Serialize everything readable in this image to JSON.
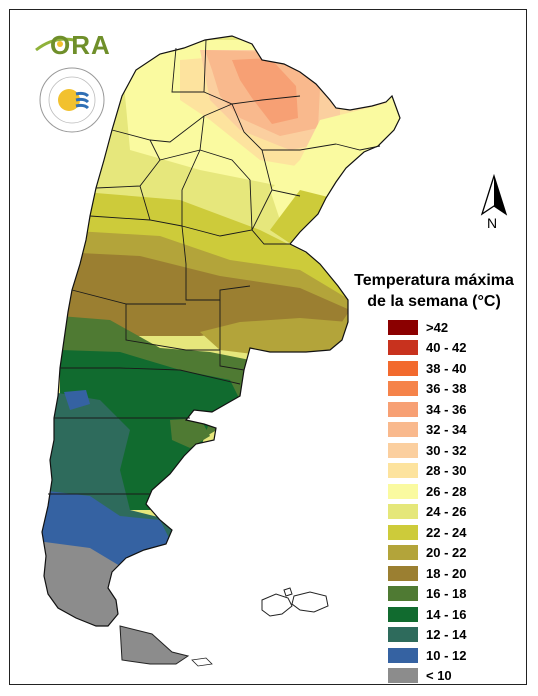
{
  "legend": {
    "title_line1": "Temperatura máxima",
    "title_line2": "de la semana (°C)",
    "items": [
      {
        "label": ">42",
        "color": "#8b0000"
      },
      {
        "label": "40 - 42",
        "color": "#c8321e"
      },
      {
        "label": "38 - 40",
        "color": "#f26a2e"
      },
      {
        "label": "36 - 38",
        "color": "#f5834a"
      },
      {
        "label": "34 - 36",
        "color": "#f7a074"
      },
      {
        "label": "32 - 34",
        "color": "#f9b98d"
      },
      {
        "label": "30 - 32",
        "color": "#fbcf9f"
      },
      {
        "label": "28 - 30",
        "color": "#fde39e"
      },
      {
        "label": "26 - 28",
        "color": "#fafaa0"
      },
      {
        "label": "24 - 26",
        "color": "#e5e77a"
      },
      {
        "label": "22 - 24",
        "color": "#cdcb3a"
      },
      {
        "label": "20 - 22",
        "color": "#b3a43a"
      },
      {
        "label": "18 - 20",
        "color": "#9b7f31"
      },
      {
        "label": "16 - 18",
        "color": "#4f7a33"
      },
      {
        "label": "14 - 16",
        "color": "#116b2f"
      },
      {
        "label": "12 - 14",
        "color": "#2e6b5c"
      },
      {
        "label": "10 - 12",
        "color": "#3562a2"
      },
      {
        "label": "< 10",
        "color": "#8c8c8c"
      }
    ]
  },
  "north_arrow": {
    "label": "N"
  },
  "logos": {
    "ora_text": "ORA",
    "smn_text": "SERVICIO METEOROLÓGICO NACIONAL · ARGENTINA"
  }
}
